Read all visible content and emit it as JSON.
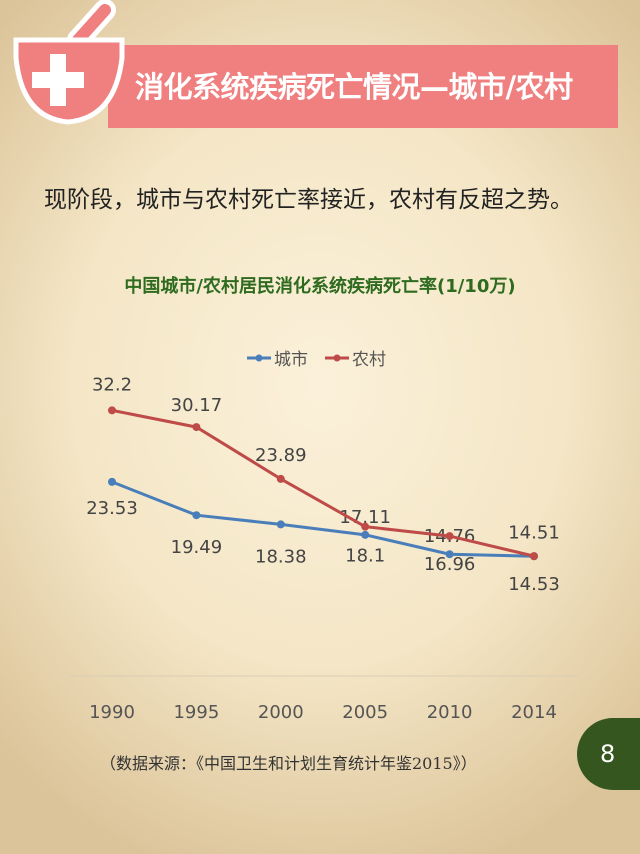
{
  "header": {
    "title": "消化系统疾病死亡情况—城市/农村",
    "icon": "mortar-pestle-medical-cross-icon"
  },
  "subtitle": "现阶段，城市与农村死亡率接近，农村有反超之势。",
  "chart_data": {
    "type": "line",
    "title": "中国城市/农村居民消化系统疾病死亡率(1/10万)",
    "categories": [
      "1990",
      "1995",
      "2000",
      "2005",
      "2010",
      "2014"
    ],
    "series": [
      {
        "name": "城市",
        "color": "#4a7ebb",
        "values": [
          23.53,
          19.49,
          18.38,
          17.11,
          14.76,
          14.51
        ]
      },
      {
        "name": "农村",
        "color": "#be4b48",
        "values": [
          32.2,
          30.17,
          23.89,
          18.1,
          16.96,
          14.53
        ]
      }
    ],
    "ylim": [
      0,
      35
    ],
    "grid": false,
    "legend": "top-center",
    "xlabel": "",
    "ylabel": ""
  },
  "footer": {
    "source": "（数据来源：《中国卫生和计划生育统计年鉴2015》）",
    "page": "8",
    "page_color": "#35561f"
  },
  "colors": {
    "banner": "#f07f80",
    "title_green": "#2e6b1f"
  }
}
